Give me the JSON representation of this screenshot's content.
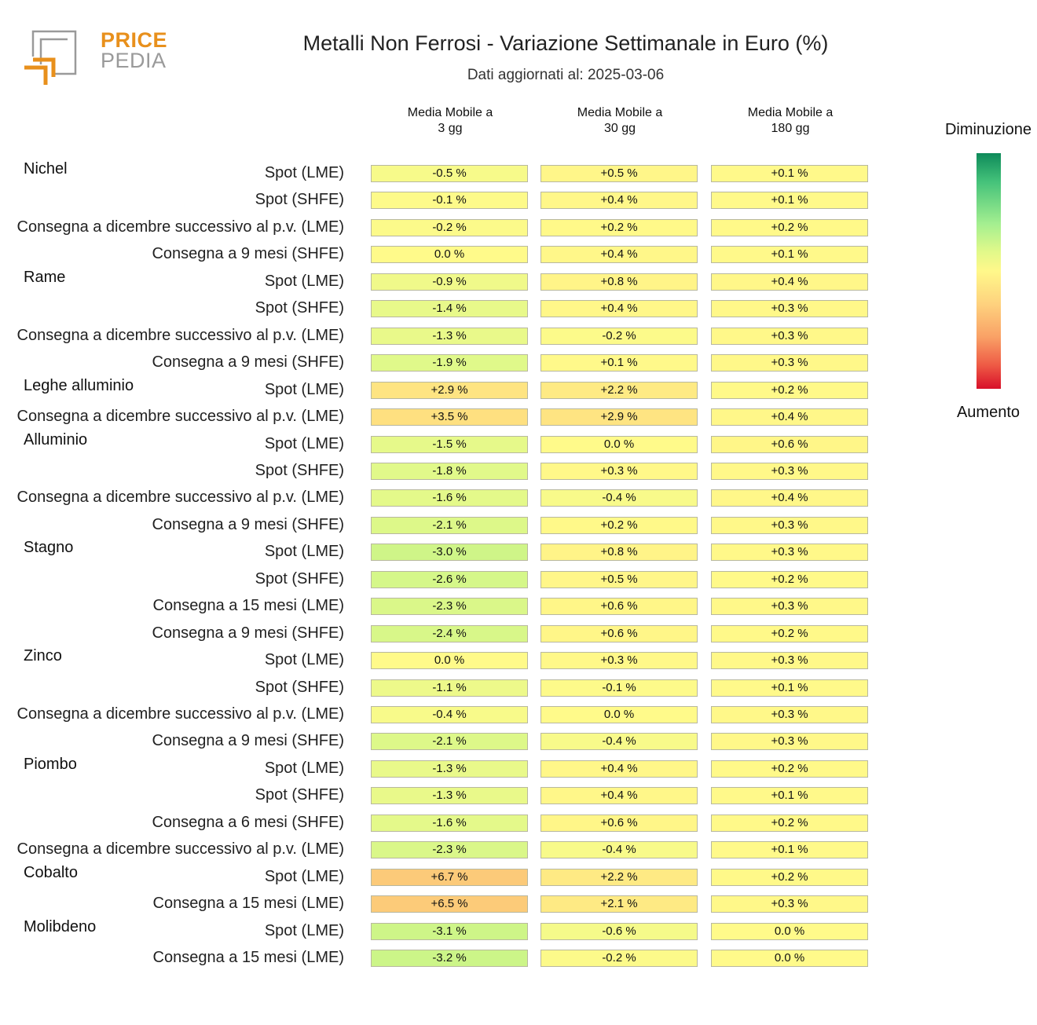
{
  "logo": {
    "line1": "PRICE",
    "line2": "PEDIA"
  },
  "header": {
    "title": "Metalli Non Ferrosi - Variazione Settimanale in Euro (%)",
    "subtitle": "Dati aggiornati al: 2025-03-06"
  },
  "legend": {
    "top_label": "Diminuzione",
    "bottom_label": "Aumento"
  },
  "colors": {
    "decrease": "#0e8a5a",
    "neutral": "#fff88a",
    "increase": "#d8102a",
    "logo_orange": "#e8901c",
    "logo_gray": "#9a9a9a"
  },
  "chart_data": {
    "type": "table",
    "columns": [
      "Media Mobile a\n3 gg",
      "Media Mobile a\n30 gg",
      "Media Mobile a\n180 gg"
    ],
    "groups": [
      {
        "metal": "Nichel",
        "rows": [
          {
            "label": "Spot (LME)",
            "values": [
              -0.5,
              0.5,
              0.1
            ],
            "texts": [
              "-0.5 %",
              "+0.5 %",
              "+0.1 %"
            ]
          },
          {
            "label": "Spot (SHFE)",
            "values": [
              -0.1,
              0.4,
              0.1
            ],
            "texts": [
              "-0.1 %",
              "+0.4 %",
              "+0.1 %"
            ]
          },
          {
            "label": "Consegna a dicembre successivo al p.v. (LME)",
            "values": [
              -0.2,
              0.2,
              0.2
            ],
            "texts": [
              "-0.2 %",
              "+0.2 %",
              "+0.2 %"
            ]
          },
          {
            "label": "Consegna a 9 mesi (SHFE)",
            "values": [
              0.0,
              0.4,
              0.1
            ],
            "texts": [
              "0.0 %",
              "+0.4 %",
              "+0.1 %"
            ]
          }
        ]
      },
      {
        "metal": "Rame",
        "rows": [
          {
            "label": "Spot (LME)",
            "values": [
              -0.9,
              0.8,
              0.4
            ],
            "texts": [
              "-0.9 %",
              "+0.8 %",
              "+0.4 %"
            ]
          },
          {
            "label": "Spot (SHFE)",
            "values": [
              -1.4,
              0.4,
              0.3
            ],
            "texts": [
              "-1.4 %",
              "+0.4 %",
              "+0.3 %"
            ]
          },
          {
            "label": "Consegna a dicembre successivo al p.v. (LME)",
            "values": [
              -1.3,
              -0.2,
              0.3
            ],
            "texts": [
              "-1.3 %",
              "-0.2 %",
              "+0.3 %"
            ]
          },
          {
            "label": "Consegna a 9 mesi (SHFE)",
            "values": [
              -1.9,
              0.1,
              0.3
            ],
            "texts": [
              "-1.9 %",
              "+0.1 %",
              "+0.3 %"
            ]
          }
        ]
      },
      {
        "metal": "Leghe alluminio",
        "rows": [
          {
            "label": "Spot (LME)",
            "values": [
              2.9,
              2.2,
              0.2
            ],
            "texts": [
              "+2.9 %",
              "+2.2 %",
              "+0.2 %"
            ]
          },
          {
            "label": "Consegna a dicembre successivo al p.v. (LME)",
            "values": [
              3.5,
              2.9,
              0.4
            ],
            "texts": [
              "+3.5 %",
              "+2.9 %",
              "+0.4 %"
            ]
          }
        ]
      },
      {
        "metal": "Alluminio",
        "rows": [
          {
            "label": "Spot (LME)",
            "values": [
              -1.5,
              0.0,
              0.6
            ],
            "texts": [
              "-1.5 %",
              "0.0 %",
              "+0.6 %"
            ]
          },
          {
            "label": "Spot (SHFE)",
            "values": [
              -1.8,
              0.3,
              0.3
            ],
            "texts": [
              "-1.8 %",
              "+0.3 %",
              "+0.3 %"
            ]
          },
          {
            "label": "Consegna a dicembre successivo al p.v. (LME)",
            "values": [
              -1.6,
              -0.4,
              0.4
            ],
            "texts": [
              "-1.6 %",
              "-0.4 %",
              "+0.4 %"
            ]
          },
          {
            "label": "Consegna a 9 mesi (SHFE)",
            "values": [
              -2.1,
              0.2,
              0.3
            ],
            "texts": [
              "-2.1 %",
              "+0.2 %",
              "+0.3 %"
            ]
          }
        ]
      },
      {
        "metal": "Stagno",
        "rows": [
          {
            "label": "Spot (LME)",
            "values": [
              -3.0,
              0.8,
              0.3
            ],
            "texts": [
              "-3.0 %",
              "+0.8 %",
              "+0.3 %"
            ]
          },
          {
            "label": "Spot (SHFE)",
            "values": [
              -2.6,
              0.5,
              0.2
            ],
            "texts": [
              "-2.6 %",
              "+0.5 %",
              "+0.2 %"
            ]
          },
          {
            "label": "Consegna a 15 mesi (LME)",
            "values": [
              -2.3,
              0.6,
              0.3
            ],
            "texts": [
              "-2.3 %",
              "+0.6 %",
              "+0.3 %"
            ]
          },
          {
            "label": "Consegna a 9 mesi (SHFE)",
            "values": [
              -2.4,
              0.6,
              0.2
            ],
            "texts": [
              "-2.4 %",
              "+0.6 %",
              "+0.2 %"
            ]
          }
        ]
      },
      {
        "metal": "Zinco",
        "rows": [
          {
            "label": "Spot (LME)",
            "values": [
              0.0,
              0.3,
              0.3
            ],
            "texts": [
              "0.0 %",
              "+0.3 %",
              "+0.3 %"
            ]
          },
          {
            "label": "Spot (SHFE)",
            "values": [
              -1.1,
              -0.1,
              0.1
            ],
            "texts": [
              "-1.1 %",
              "-0.1 %",
              "+0.1 %"
            ]
          },
          {
            "label": "Consegna a dicembre successivo al p.v. (LME)",
            "values": [
              -0.4,
              0.0,
              0.3
            ],
            "texts": [
              "-0.4 %",
              "0.0 %",
              "+0.3 %"
            ]
          },
          {
            "label": "Consegna a 9 mesi (SHFE)",
            "values": [
              -2.1,
              -0.4,
              0.3
            ],
            "texts": [
              "-2.1 %",
              "-0.4 %",
              "+0.3 %"
            ]
          }
        ]
      },
      {
        "metal": "Piombo",
        "rows": [
          {
            "label": "Spot (LME)",
            "values": [
              -1.3,
              0.4,
              0.2
            ],
            "texts": [
              "-1.3 %",
              "+0.4 %",
              "+0.2 %"
            ]
          },
          {
            "label": "Spot (SHFE)",
            "values": [
              -1.3,
              0.4,
              0.1
            ],
            "texts": [
              "-1.3 %",
              "+0.4 %",
              "+0.1 %"
            ]
          },
          {
            "label": "Consegna a 6 mesi (SHFE)",
            "values": [
              -1.6,
              0.6,
              0.2
            ],
            "texts": [
              "-1.6 %",
              "+0.6 %",
              "+0.2 %"
            ]
          },
          {
            "label": "Consegna a dicembre successivo al p.v. (LME)",
            "values": [
              -2.3,
              -0.4,
              0.1
            ],
            "texts": [
              "-2.3 %",
              "-0.4 %",
              "+0.1 %"
            ]
          }
        ]
      },
      {
        "metal": "Cobalto",
        "rows": [
          {
            "label": "Spot (LME)",
            "values": [
              6.7,
              2.2,
              0.2
            ],
            "texts": [
              "+6.7 %",
              "+2.2 %",
              "+0.2 %"
            ]
          },
          {
            "label": "Consegna a 15 mesi (LME)",
            "values": [
              6.5,
              2.1,
              0.3
            ],
            "texts": [
              "+6.5 %",
              "+2.1 %",
              "+0.3 %"
            ]
          }
        ]
      },
      {
        "metal": "Molibdeno",
        "rows": [
          {
            "label": "Spot (LME)",
            "values": [
              -3.1,
              -0.6,
              0.0
            ],
            "texts": [
              "-3.1 %",
              "-0.6 %",
              "0.0 %"
            ]
          },
          {
            "label": "Consegna a 15 mesi (LME)",
            "values": [
              -3.2,
              -0.2,
              0.0
            ],
            "texts": [
              "-3.2 %",
              "-0.2 %",
              "0.0 %"
            ]
          }
        ]
      }
    ]
  }
}
